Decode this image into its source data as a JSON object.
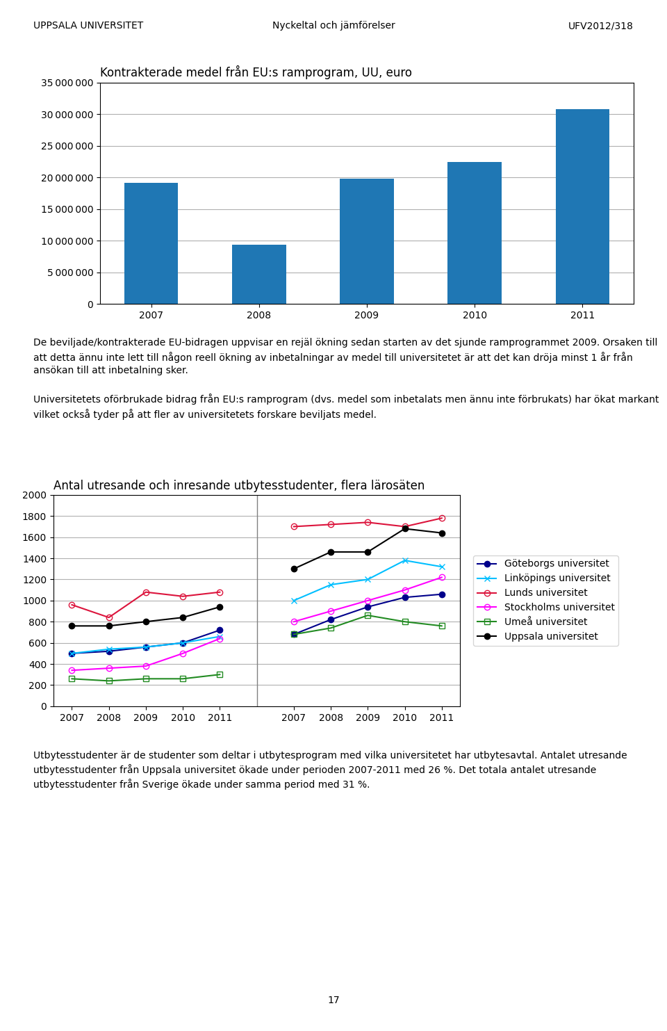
{
  "chart_data": [
    {
      "type": "bar",
      "title": "Kontrakterade medel från EU:s ramprogram, UU, euro",
      "categories": [
        "2007",
        "2008",
        "2009",
        "2010",
        "2011"
      ],
      "values": [
        19200000,
        9400000,
        19800000,
        22400000,
        30800000
      ],
      "ylim": [
        0,
        35000000
      ],
      "yticks": [
        0,
        {
          "value": 5000000,
          "label": "5 000 000"
        },
        {
          "value": 10000000,
          "label": "10 000 000"
        },
        {
          "value": 15000000,
          "label": "15 000 000"
        },
        {
          "value": 20000000,
          "label": "20 000 000"
        },
        {
          "value": 25000000,
          "label": "25 000 000"
        },
        {
          "value": 30000000,
          "label": "30 000 000"
        },
        {
          "value": 35000000,
          "label": "35 000 000"
        }
      ],
      "grid": true,
      "annotations": [
        "UPPSALA UNIVERSITET",
        "Nyckeltal och jämförelser",
        "UFV2012/318",
        "De beviljade/kontrakterade EU-bidragen uppvisar en rejäl ökning sedan starten av det sjunde ramprogrammet 2009. Orsaken till att detta ännu inte lett till någon reell ökning av inbetalningar av medel till universitetet är att det kan dröja minst 1 år från ansökan till att inbetalning sker.",
        "Universitetets oförbrukade bidrag från EU:s ramprogram (dvs. medel som inbetalats men ännu inte förbrukats) har ökat markant vilket också tyder på att fler av universitetets forskare beviljats medel."
      ]
    },
    {
      "type": "line",
      "title": "Antal utresande och inresande utbytesstudenter, flera lärosäten",
      "categories": [
        "2007",
        "2008",
        "2009",
        "2010",
        "2011",
        null,
        "2007",
        "2008",
        "2009",
        "2010",
        "2011"
      ],
      "series": [
        {
          "name": "Göteborgs universitet",
          "color": "#00008B",
          "marker": "filled circle",
          "values": [
            500,
            520,
            560,
            600,
            720,
            null,
            680,
            820,
            940,
            1030,
            1060
          ]
        },
        {
          "name": "Linköpings universitet",
          "color": "#00BFFF",
          "marker": "x",
          "values": [
            500,
            540,
            560,
            600,
            660,
            null,
            1000,
            1150,
            1200,
            1380,
            1320
          ]
        },
        {
          "name": "Lunds universitet",
          "color": "#DC143C",
          "marker": "open circle",
          "values": [
            960,
            840,
            1080,
            1040,
            1080,
            null,
            1700,
            1720,
            1740,
            1700,
            1780
          ]
        },
        {
          "name": "Stockholms universitet",
          "color": "#FF00FF",
          "marker": "open circle",
          "values": [
            340,
            360,
            380,
            500,
            640,
            null,
            800,
            900,
            1000,
            1100,
            1220
          ]
        },
        {
          "name": "Umeå universitet",
          "color": "#228B22",
          "marker": "open square",
          "values": [
            260,
            240,
            260,
            260,
            300,
            null,
            680,
            740,
            860,
            800,
            760
          ]
        },
        {
          "name": "Uppsala universitet",
          "color": "#000000",
          "marker": "filled circle",
          "values": [
            760,
            760,
            800,
            840,
            940,
            null,
            1300,
            1460,
            1460,
            1680,
            1640
          ]
        }
      ],
      "ylim": [
        0,
        2000
      ],
      "yticks": [
        0,
        200,
        400,
        600,
        800,
        1000,
        1200,
        1400,
        1600,
        1800,
        2000
      ],
      "grid": true,
      "legend": "right",
      "annotations": [
        "Utbytesstudenter är de studenter som deltar i utbytesprogram med vilka universitetet har utbytesavtal. Antalet utresande utbytesstudenter från Uppsala universitet ökade under perioden 2007-2011 med 26 %. Det totala antalet utresande utbytesstudenter från Sverige ökade under samma period med 31 %.",
        "17"
      ]
    }
  ]
}
